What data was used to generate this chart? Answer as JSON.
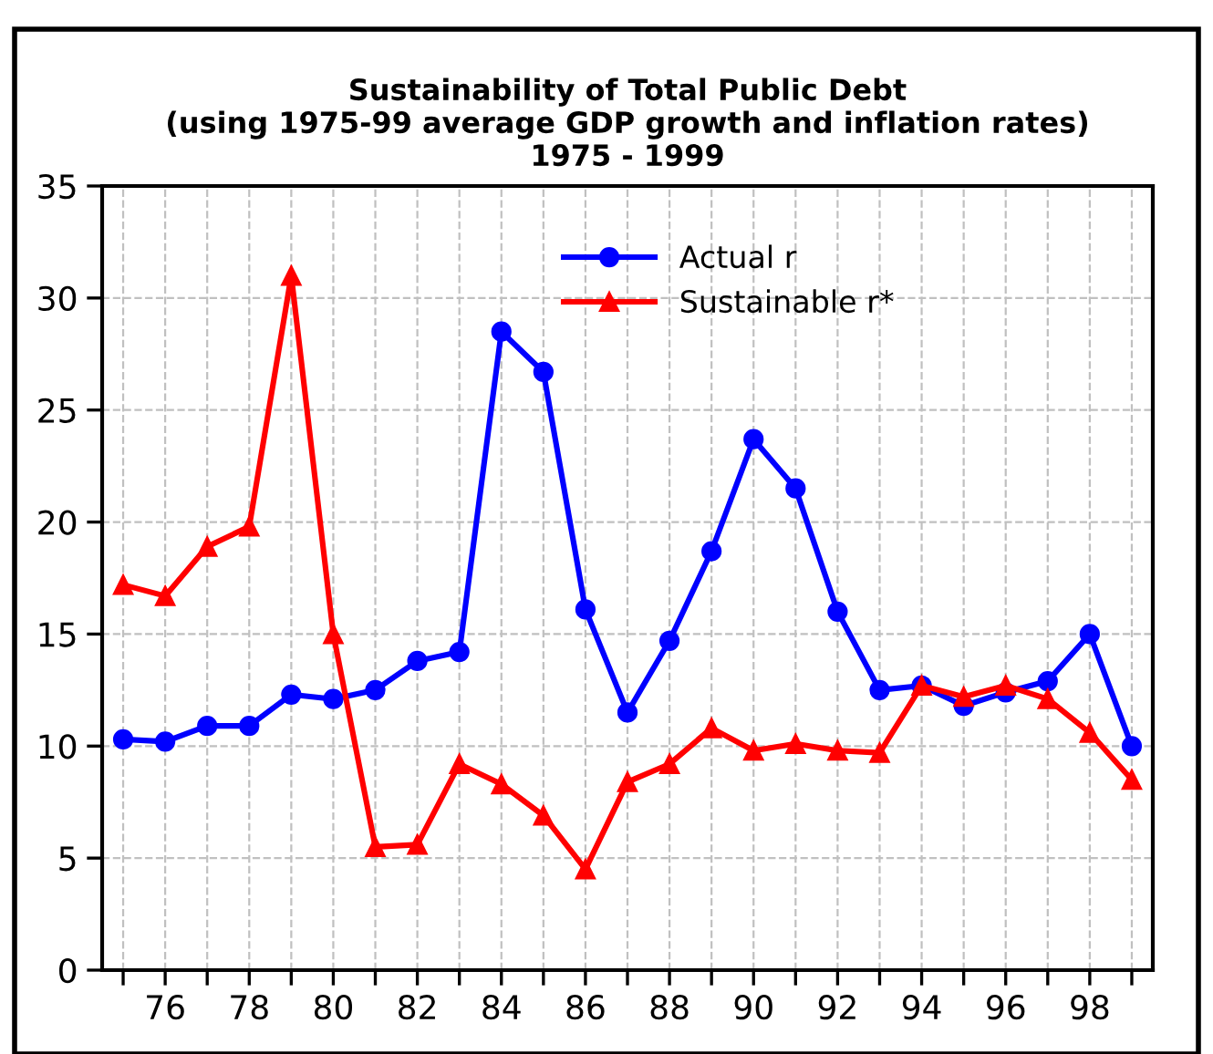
{
  "chart_data": {
    "type": "line",
    "title": "Sustainability of Total Public Debt\n(using 1975-99 average GDP growth and inflation rates)\n1975 - 1999",
    "x": [
      75,
      76,
      77,
      78,
      79,
      80,
      81,
      82,
      83,
      84,
      85,
      86,
      87,
      88,
      89,
      90,
      91,
      92,
      93,
      94,
      95,
      96,
      97,
      98,
      99
    ],
    "series": [
      {
        "name": "Actual r",
        "color": "#0000ff",
        "marker": "circle",
        "values": [
          10.3,
          10.2,
          10.9,
          10.9,
          12.3,
          12.1,
          12.5,
          13.8,
          14.2,
          28.5,
          26.7,
          16.1,
          11.5,
          14.7,
          18.7,
          23.7,
          21.5,
          16.0,
          12.5,
          12.7,
          11.8,
          12.4,
          12.9,
          15.0,
          10.0
        ]
      },
      {
        "name": "Sustainable r*",
        "color": "#ff0000",
        "marker": "triangle",
        "values": [
          17.2,
          16.7,
          18.9,
          19.8,
          31.0,
          15.0,
          5.5,
          5.6,
          9.2,
          8.3,
          6.9,
          4.5,
          8.4,
          9.2,
          10.8,
          9.8,
          10.1,
          9.8,
          9.7,
          12.7,
          12.2,
          12.7,
          12.1,
          10.6,
          8.5
        ]
      }
    ],
    "xlim": [
      74.5,
      99.5
    ],
    "xticks": [
      {
        "value": 75,
        "label": null
      },
      76,
      {
        "value": 77,
        "label": null
      },
      78,
      {
        "value": 79,
        "label": null
      },
      80,
      {
        "value": 81,
        "label": null
      },
      82,
      {
        "value": 83,
        "label": null
      },
      84,
      {
        "value": 85,
        "label": null
      },
      86,
      {
        "value": 87,
        "label": null
      },
      88,
      {
        "value": 89,
        "label": null
      },
      90,
      {
        "value": 91,
        "label": null
      },
      92,
      {
        "value": 93,
        "label": null
      },
      94,
      {
        "value": 95,
        "label": null
      },
      96,
      {
        "value": 97,
        "label": null
      },
      98,
      {
        "value": 99,
        "label": null
      }
    ],
    "ylim": [
      0,
      35
    ],
    "yticks": [
      0,
      5,
      10,
      15,
      20,
      25,
      30,
      35
    ],
    "grid": true,
    "legend": "top right",
    "line_style": "solid"
  }
}
